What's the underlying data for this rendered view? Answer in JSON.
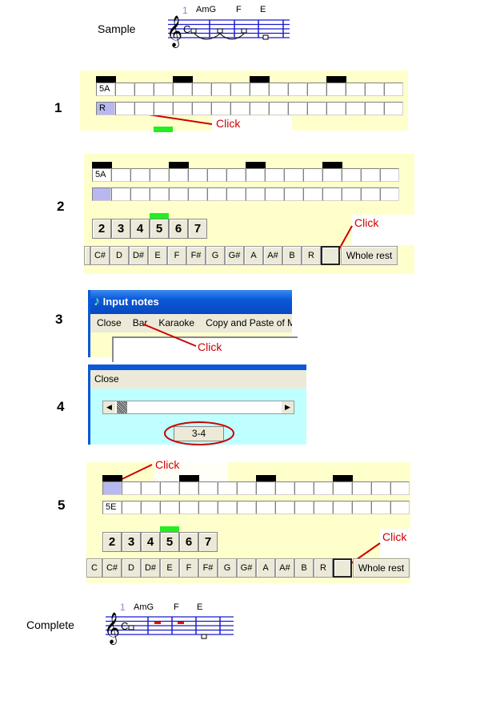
{
  "sample": {
    "label": "Sample",
    "measure_number": "1",
    "chords": [
      "AmG",
      "F",
      "E"
    ],
    "time_signature": "C"
  },
  "complete": {
    "label": "Complete",
    "measure_number": "1",
    "chords": [
      "AmG",
      "F",
      "E"
    ],
    "time_signature": "C"
  },
  "steps": [
    "1",
    "2",
    "3",
    "4",
    "5"
  ],
  "click_label": "Click",
  "step1": {
    "row1": [
      "5A"
    ],
    "row2": [
      "R"
    ]
  },
  "step2": {
    "row1": [
      "5A"
    ],
    "row2": [
      ""
    ]
  },
  "step5": {
    "row1": [
      ""
    ],
    "row2": [
      "5E"
    ]
  },
  "octave_buttons": [
    "2",
    "3",
    "4",
    "5",
    "6",
    "7"
  ],
  "selected_octave": "5",
  "note_buttons": [
    "C",
    "C#",
    "D",
    "D#",
    "E",
    "F",
    "F#",
    "G",
    "G#",
    "A",
    "A#",
    "B",
    "R"
  ],
  "whole_rest_label": "Whole rest",
  "window3": {
    "title": "Input notes",
    "menu": [
      "Close",
      "Bar",
      "Karaoke",
      "Copy and Paste of Me"
    ]
  },
  "window4": {
    "menu": [
      "Close"
    ],
    "bar_value": "3-4"
  },
  "colors": {
    "accent_red": "#cc0000",
    "panel_yellow": "#ffffcc",
    "selected_cell": "#b8b8f0",
    "octave_indicator": "#22ee22",
    "cyan_bg": "#c0ffff",
    "title_blue": "#0a58d8"
  }
}
